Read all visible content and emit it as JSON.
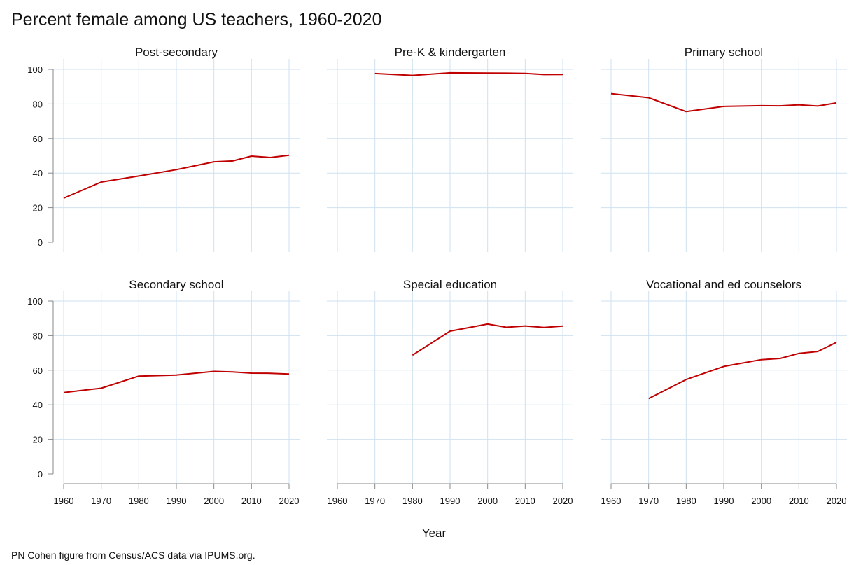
{
  "page": {
    "title": "Percent female among US teachers, 1960-2020",
    "xlabel": "Year",
    "caption": "PN Cohen figure from Census/ACS data via IPUMS.org."
  },
  "colors": {
    "line": "#c00000",
    "grid": "#cfe2f0",
    "axis": "#888888"
  },
  "chart_data": {
    "type": "line",
    "title": "Percent female among US teachers, 1960-2020",
    "xlabel": "Year",
    "ylabel": "",
    "xlim": [
      1960,
      2020
    ],
    "ylim": [
      0,
      100
    ],
    "xticks": [
      1960,
      1970,
      1980,
      1990,
      2000,
      2010,
      2020
    ],
    "yticks": [
      0,
      20,
      40,
      60,
      80,
      100
    ],
    "grid": true,
    "panels": [
      {
        "name": "Post-secondary",
        "x": [
          1960,
          1970,
          1980,
          1990,
          2000,
          2005,
          2010,
          2015,
          2020
        ],
        "y": [
          25.5,
          34.8,
          38.3,
          42.0,
          46.5,
          47.0,
          49.8,
          49.0,
          50.3
        ]
      },
      {
        "name": "Pre-K & kindergarten",
        "x": [
          1970,
          1980,
          1990,
          2000,
          2005,
          2010,
          2015,
          2020
        ],
        "y": [
          97.6,
          96.5,
          98.0,
          97.9,
          97.8,
          97.7,
          97.0,
          97.1
        ]
      },
      {
        "name": "Primary school",
        "x": [
          1960,
          1970,
          1980,
          1990,
          2000,
          2005,
          2010,
          2015,
          2020
        ],
        "y": [
          86.0,
          83.6,
          75.6,
          78.6,
          79.0,
          78.9,
          79.5,
          78.8,
          80.6
        ]
      },
      {
        "name": "Secondary school",
        "x": [
          1960,
          1970,
          1980,
          1990,
          2000,
          2005,
          2010,
          2015,
          2020
        ],
        "y": [
          47.1,
          49.6,
          56.6,
          57.2,
          59.3,
          59.0,
          58.3,
          58.2,
          57.8
        ]
      },
      {
        "name": "Special education",
        "x": [
          1980,
          1990,
          2000,
          2005,
          2010,
          2015,
          2020
        ],
        "y": [
          68.7,
          82.6,
          86.7,
          84.8,
          85.6,
          84.7,
          85.5
        ]
      },
      {
        "name": "Vocational and ed counselors",
        "x": [
          1970,
          1980,
          1990,
          2000,
          2005,
          2010,
          2015,
          2020
        ],
        "y": [
          43.6,
          54.6,
          62.2,
          66.1,
          66.8,
          69.7,
          70.8,
          76.1
        ]
      }
    ]
  }
}
